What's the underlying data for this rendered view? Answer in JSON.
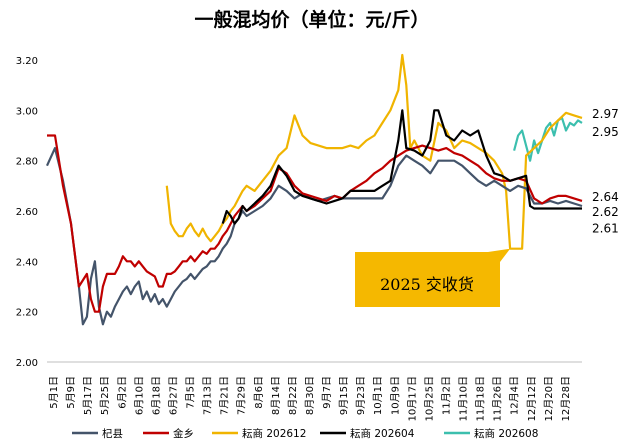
{
  "chart_data": {
    "type": "line",
    "title": "一般混均价（单位：元/斤）",
    "xlabel": "",
    "ylabel": "",
    "ylim": [
      2.0,
      3.2
    ],
    "yticks": [
      "2.00",
      "2.20",
      "2.40",
      "2.60",
      "2.80",
      "3.00",
      "3.20"
    ],
    "xticks": [
      "5月1日",
      "5月9日",
      "5月17日",
      "5月25日",
      "6月2日",
      "6月10日",
      "6月18日",
      "6月27日",
      "7月5日",
      "7月13日",
      "7月21日",
      "7月29日",
      "8月6日",
      "8月14日",
      "8月22日",
      "8月30日",
      "9月7日",
      "9月15日",
      "9月23日",
      "10月1日",
      "10月9日",
      "10月17日",
      "10月25日",
      "11月2日",
      "11月10日",
      "11月18日",
      "11月26日",
      "12月4日",
      "12月12日",
      "12月20日",
      "12月28日"
    ],
    "grid": false,
    "legend_position": "bottom",
    "end_labels": [
      "2.97",
      "2.95",
      "2.64",
      "2.62",
      "2.61"
    ],
    "annotation": {
      "text": "2025 交收货",
      "pointer_date_index": 34
    },
    "series": [
      {
        "name": "杞县",
        "color": "#44546a",
        "points": [
          [
            0,
            2.78
          ],
          [
            2,
            2.85
          ],
          [
            4,
            2.72
          ],
          [
            6,
            2.55
          ],
          [
            8,
            2.3
          ],
          [
            9,
            2.15
          ],
          [
            10,
            2.18
          ],
          [
            11,
            2.33
          ],
          [
            12,
            2.4
          ],
          [
            13,
            2.22
          ],
          [
            14,
            2.15
          ],
          [
            15,
            2.2
          ],
          [
            16,
            2.18
          ],
          [
            17,
            2.22
          ],
          [
            18,
            2.25
          ],
          [
            19,
            2.28
          ],
          [
            20,
            2.3
          ],
          [
            21,
            2.27
          ],
          [
            22,
            2.3
          ],
          [
            23,
            2.32
          ],
          [
            24,
            2.25
          ],
          [
            25,
            2.28
          ],
          [
            26,
            2.24
          ],
          [
            27,
            2.27
          ],
          [
            28,
            2.23
          ],
          [
            29,
            2.25
          ],
          [
            30,
            2.22
          ],
          [
            31,
            2.25
          ],
          [
            32,
            2.28
          ],
          [
            33,
            2.3
          ],
          [
            34,
            2.32
          ],
          [
            35,
            2.33
          ],
          [
            36,
            2.35
          ],
          [
            37,
            2.33
          ],
          [
            38,
            2.35
          ],
          [
            39,
            2.37
          ],
          [
            40,
            2.38
          ],
          [
            41,
            2.4
          ],
          [
            42,
            2.4
          ],
          [
            43,
            2.42
          ],
          [
            44,
            2.45
          ],
          [
            45,
            2.47
          ],
          [
            46,
            2.5
          ],
          [
            47,
            2.55
          ],
          [
            48,
            2.57
          ],
          [
            49,
            2.6
          ],
          [
            50,
            2.58
          ],
          [
            52,
            2.6
          ],
          [
            54,
            2.62
          ],
          [
            56,
            2.65
          ],
          [
            58,
            2.7
          ],
          [
            60,
            2.68
          ],
          [
            62,
            2.65
          ],
          [
            64,
            2.67
          ],
          [
            66,
            2.65
          ],
          [
            68,
            2.64
          ],
          [
            70,
            2.65
          ],
          [
            72,
            2.66
          ],
          [
            74,
            2.65
          ],
          [
            76,
            2.65
          ],
          [
            78,
            2.65
          ],
          [
            80,
            2.65
          ],
          [
            82,
            2.65
          ],
          [
            84,
            2.65
          ],
          [
            86,
            2.7
          ],
          [
            88,
            2.78
          ],
          [
            90,
            2.82
          ],
          [
            92,
            2.8
          ],
          [
            94,
            2.78
          ],
          [
            96,
            2.75
          ],
          [
            98,
            2.8
          ],
          [
            100,
            2.8
          ],
          [
            102,
            2.8
          ],
          [
            104,
            2.78
          ],
          [
            106,
            2.75
          ],
          [
            108,
            2.72
          ],
          [
            110,
            2.7
          ],
          [
            112,
            2.72
          ],
          [
            114,
            2.7
          ],
          [
            116,
            2.68
          ],
          [
            118,
            2.7
          ],
          [
            120,
            2.69
          ],
          [
            122,
            2.63
          ],
          [
            124,
            2.63
          ],
          [
            126,
            2.64
          ],
          [
            128,
            2.63
          ],
          [
            130,
            2.64
          ],
          [
            132,
            2.63
          ],
          [
            134,
            2.62
          ]
        ]
      },
      {
        "name": "金乡",
        "color": "#c00000",
        "points": [
          [
            0,
            2.9
          ],
          [
            2,
            2.9
          ],
          [
            4,
            2.7
          ],
          [
            6,
            2.55
          ],
          [
            8,
            2.3
          ],
          [
            10,
            2.35
          ],
          [
            11,
            2.25
          ],
          [
            12,
            2.2
          ],
          [
            13,
            2.2
          ],
          [
            14,
            2.3
          ],
          [
            15,
            2.35
          ],
          [
            16,
            2.35
          ],
          [
            17,
            2.35
          ],
          [
            18,
            2.38
          ],
          [
            19,
            2.42
          ],
          [
            20,
            2.4
          ],
          [
            21,
            2.4
          ],
          [
            22,
            2.38
          ],
          [
            23,
            2.4
          ],
          [
            24,
            2.38
          ],
          [
            25,
            2.36
          ],
          [
            26,
            2.35
          ],
          [
            27,
            2.34
          ],
          [
            28,
            2.3
          ],
          [
            29,
            2.3
          ],
          [
            30,
            2.35
          ],
          [
            31,
            2.35
          ],
          [
            32,
            2.36
          ],
          [
            33,
            2.38
          ],
          [
            34,
            2.4
          ],
          [
            35,
            2.4
          ],
          [
            36,
            2.42
          ],
          [
            37,
            2.4
          ],
          [
            38,
            2.42
          ],
          [
            39,
            2.44
          ],
          [
            40,
            2.43
          ],
          [
            41,
            2.45
          ],
          [
            42,
            2.45
          ],
          [
            43,
            2.47
          ],
          [
            44,
            2.5
          ],
          [
            45,
            2.52
          ],
          [
            46,
            2.55
          ],
          [
            47,
            2.58
          ],
          [
            48,
            2.6
          ],
          [
            49,
            2.62
          ],
          [
            50,
            2.6
          ],
          [
            52,
            2.62
          ],
          [
            54,
            2.65
          ],
          [
            56,
            2.68
          ],
          [
            58,
            2.77
          ],
          [
            60,
            2.75
          ],
          [
            62,
            2.7
          ],
          [
            64,
            2.67
          ],
          [
            66,
            2.66
          ],
          [
            68,
            2.65
          ],
          [
            70,
            2.64
          ],
          [
            72,
            2.66
          ],
          [
            74,
            2.65
          ],
          [
            76,
            2.68
          ],
          [
            78,
            2.7
          ],
          [
            80,
            2.72
          ],
          [
            82,
            2.75
          ],
          [
            84,
            2.77
          ],
          [
            86,
            2.8
          ],
          [
            88,
            2.82
          ],
          [
            90,
            2.84
          ],
          [
            92,
            2.85
          ],
          [
            94,
            2.86
          ],
          [
            96,
            2.85
          ],
          [
            98,
            2.84
          ],
          [
            100,
            2.85
          ],
          [
            102,
            2.83
          ],
          [
            104,
            2.82
          ],
          [
            106,
            2.8
          ],
          [
            108,
            2.78
          ],
          [
            110,
            2.75
          ],
          [
            112,
            2.73
          ],
          [
            114,
            2.72
          ],
          [
            116,
            2.72
          ],
          [
            118,
            2.73
          ],
          [
            120,
            2.72
          ],
          [
            122,
            2.65
          ],
          [
            124,
            2.63
          ],
          [
            126,
            2.65
          ],
          [
            128,
            2.66
          ],
          [
            130,
            2.66
          ],
          [
            132,
            2.65
          ],
          [
            134,
            2.64
          ]
        ]
      },
      {
        "name": "耘商 202612",
        "color": "#f0b400",
        "points": [
          [
            30,
            2.7
          ],
          [
            31,
            2.55
          ],
          [
            32,
            2.52
          ],
          [
            33,
            2.5
          ],
          [
            34,
            2.5
          ],
          [
            35,
            2.53
          ],
          [
            36,
            2.55
          ],
          [
            37,
            2.52
          ],
          [
            38,
            2.5
          ],
          [
            39,
            2.53
          ],
          [
            40,
            2.5
          ],
          [
            41,
            2.48
          ],
          [
            42,
            2.5
          ],
          [
            43,
            2.52
          ],
          [
            44,
            2.55
          ],
          [
            45,
            2.57
          ],
          [
            46,
            2.6
          ],
          [
            47,
            2.62
          ],
          [
            48,
            2.65
          ],
          [
            49,
            2.68
          ],
          [
            50,
            2.7
          ],
          [
            52,
            2.68
          ],
          [
            54,
            2.72
          ],
          [
            56,
            2.76
          ],
          [
            58,
            2.82
          ],
          [
            60,
            2.85
          ],
          [
            62,
            2.98
          ],
          [
            64,
            2.9
          ],
          [
            66,
            2.87
          ],
          [
            68,
            2.86
          ],
          [
            70,
            2.85
          ],
          [
            72,
            2.85
          ],
          [
            74,
            2.85
          ],
          [
            76,
            2.86
          ],
          [
            78,
            2.85
          ],
          [
            80,
            2.88
          ],
          [
            82,
            2.9
          ],
          [
            84,
            2.95
          ],
          [
            86,
            3.0
          ],
          [
            88,
            3.08
          ],
          [
            89,
            3.22
          ],
          [
            90,
            3.1
          ],
          [
            91,
            2.85
          ],
          [
            92,
            2.88
          ],
          [
            94,
            2.82
          ],
          [
            96,
            2.8
          ],
          [
            98,
            2.95
          ],
          [
            100,
            2.92
          ],
          [
            102,
            2.85
          ],
          [
            104,
            2.88
          ],
          [
            106,
            2.87
          ],
          [
            108,
            2.85
          ],
          [
            110,
            2.83
          ],
          [
            112,
            2.8
          ],
          [
            114,
            2.75
          ],
          [
            115,
            2.68
          ],
          [
            116,
            2.45
          ],
          [
            118,
            2.45
          ],
          [
            119,
            2.45
          ],
          [
            120,
            2.82
          ],
          [
            122,
            2.85
          ],
          [
            124,
            2.88
          ],
          [
            126,
            2.93
          ],
          [
            128,
            2.96
          ],
          [
            130,
            2.99
          ],
          [
            132,
            2.98
          ],
          [
            134,
            2.97
          ]
        ]
      },
      {
        "name": "耘商 202604",
        "color": "#000000",
        "points": [
          [
            44,
            2.55
          ],
          [
            45,
            2.6
          ],
          [
            46,
            2.58
          ],
          [
            47,
            2.55
          ],
          [
            48,
            2.57
          ],
          [
            49,
            2.62
          ],
          [
            50,
            2.6
          ],
          [
            52,
            2.63
          ],
          [
            54,
            2.66
          ],
          [
            56,
            2.7
          ],
          [
            58,
            2.78
          ],
          [
            60,
            2.74
          ],
          [
            62,
            2.68
          ],
          [
            64,
            2.66
          ],
          [
            66,
            2.65
          ],
          [
            68,
            2.64
          ],
          [
            70,
            2.63
          ],
          [
            72,
            2.64
          ],
          [
            74,
            2.65
          ],
          [
            76,
            2.68
          ],
          [
            78,
            2.68
          ],
          [
            80,
            2.68
          ],
          [
            82,
            2.68
          ],
          [
            84,
            2.7
          ],
          [
            86,
            2.72
          ],
          [
            88,
            2.88
          ],
          [
            89,
            3.0
          ],
          [
            90,
            2.85
          ],
          [
            92,
            2.84
          ],
          [
            94,
            2.82
          ],
          [
            96,
            2.88
          ],
          [
            97,
            3.0
          ],
          [
            98,
            3.0
          ],
          [
            100,
            2.9
          ],
          [
            102,
            2.88
          ],
          [
            104,
            2.92
          ],
          [
            106,
            2.9
          ],
          [
            108,
            2.92
          ],
          [
            110,
            2.82
          ],
          [
            112,
            2.75
          ],
          [
            114,
            2.74
          ],
          [
            116,
            2.72
          ],
          [
            118,
            2.73
          ],
          [
            120,
            2.74
          ],
          [
            121,
            2.62
          ],
          [
            122,
            2.61
          ],
          [
            124,
            2.61
          ],
          [
            126,
            2.61
          ],
          [
            128,
            2.61
          ],
          [
            130,
            2.61
          ],
          [
            132,
            2.61
          ],
          [
            134,
            2.61
          ]
        ]
      },
      {
        "name": "耘商 202608",
        "color": "#3cbfae",
        "points": [
          [
            117,
            2.84
          ],
          [
            118,
            2.9
          ],
          [
            119,
            2.92
          ],
          [
            120,
            2.86
          ],
          [
            121,
            2.8
          ],
          [
            122,
            2.88
          ],
          [
            123,
            2.83
          ],
          [
            124,
            2.88
          ],
          [
            125,
            2.93
          ],
          [
            126,
            2.95
          ],
          [
            127,
            2.9
          ],
          [
            128,
            2.96
          ],
          [
            129,
            2.97
          ],
          [
            130,
            2.92
          ],
          [
            131,
            2.95
          ],
          [
            132,
            2.94
          ],
          [
            133,
            2.96
          ],
          [
            134,
            2.95
          ]
        ]
      }
    ]
  }
}
